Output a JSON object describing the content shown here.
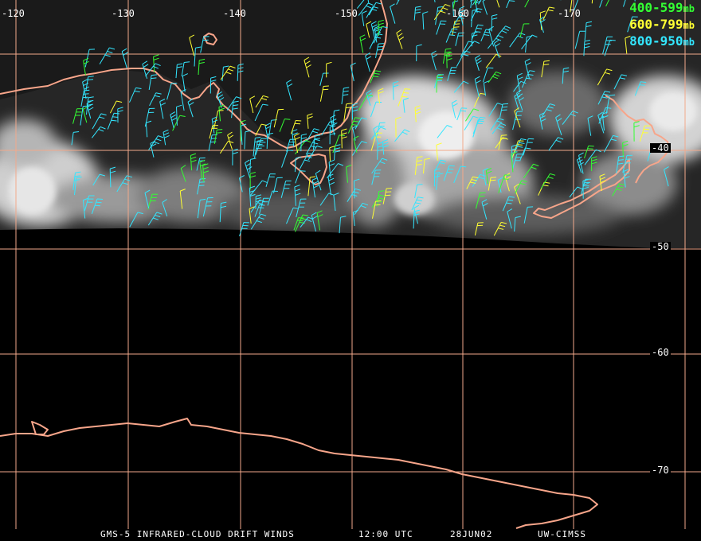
{
  "map": {
    "colors": {
      "background": "#000000",
      "grid": "#f2a98b",
      "coast": "#f7a58a",
      "cloud_light": "#d9d9d9",
      "cloud_dark": "#2b2b2b"
    },
    "longitude_labels": [
      "-120",
      "-130",
      "-140",
      "-150",
      "-160",
      "-170"
    ],
    "latitude_labels": [
      "-40",
      "-50",
      "-60",
      "-70"
    ]
  },
  "legend": {
    "items": [
      {
        "range": "400-599",
        "unit": "mb",
        "color": "#33ff33"
      },
      {
        "range": "600-799",
        "unit": "mb",
        "color": "#ffff33"
      },
      {
        "range": "800-950",
        "unit": "mb",
        "color": "#33e6ff"
      }
    ]
  },
  "footer": {
    "product": "GMS-5 INFRARED-CLOUD DRIFT WINDS",
    "time": "12:00 UTC",
    "date": "28JUN02",
    "source": "UW-CIMSS"
  }
}
